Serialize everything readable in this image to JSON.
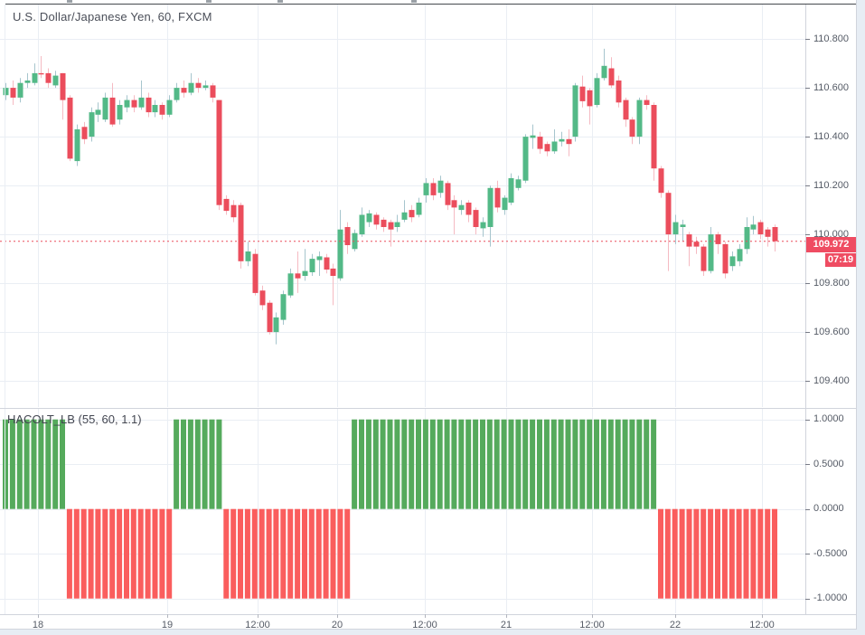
{
  "header": {
    "symbol_title": "U.S. Dollar/Japanese Yen, 60, FXCM"
  },
  "indicator_pane": {
    "label": "HACOLT_LB (55, 60, 1.1)"
  },
  "price_axis": {
    "tick_labels": [
      "110.800",
      "110.600",
      "110.400",
      "110.200",
      "110.000",
      "109.800",
      "109.600",
      "109.400"
    ],
    "tick_values": [
      110.8,
      110.6,
      110.4,
      110.2,
      110.0,
      109.8,
      109.6,
      109.4
    ],
    "last_price_label": "109.972",
    "countdown_label": "07:19"
  },
  "indicator_axis": {
    "tick_labels": [
      "1.0000",
      "0.5000",
      "0.0000",
      "-0.5000",
      "-1.0000"
    ],
    "tick_values": [
      1,
      0.5,
      0,
      -0.5,
      -1
    ]
  },
  "time_axis": {
    "labels": [
      {
        "text": "18",
        "x": 42
      },
      {
        "text": "19",
        "x": 185
      },
      {
        "text": "12:00",
        "x": 285
      },
      {
        "text": "20",
        "x": 373
      },
      {
        "text": "12:00",
        "x": 470
      },
      {
        "text": "21",
        "x": 560
      },
      {
        "text": "12:00",
        "x": 655
      },
      {
        "text": "22",
        "x": 747
      },
      {
        "text": "12:00",
        "x": 843
      }
    ]
  },
  "colors": {
    "up_body": "#53b987",
    "down_body": "#eb4d5c",
    "up_wick": "#a6c5cd",
    "down_wick": "#f5bac2",
    "ind_up": "#55aa5c",
    "ind_down": "#fa5d5d",
    "grid": "#eaeef4",
    "border": "#d1d4dc",
    "dark_top_line": "#46494e",
    "axis_text": "#555b66",
    "badge_bg": "#ef4c62",
    "price_line": "#eb4d5c"
  },
  "chart_data": [
    {
      "type": "candlestick",
      "title": "U.S. Dollar/Japanese Yen, 60, FXCM",
      "symbol": "U.S. Dollar/Japanese Yen",
      "interval": "60",
      "exchange": "FXCM",
      "current_price": 109.972,
      "ylim": [
        109.293,
        110.941
      ],
      "x_start": 6,
      "x_step": 7.88,
      "grid": true,
      "ohlc": [
        [
          110.57,
          110.62,
          110.55,
          110.6
        ],
        [
          110.6,
          110.63,
          110.53,
          110.56
        ],
        [
          110.56,
          110.64,
          110.54,
          110.62
        ],
        [
          110.62,
          110.66,
          110.6,
          110.63
        ],
        [
          110.62,
          110.7,
          110.61,
          110.66
        ],
        [
          110.66,
          110.73,
          110.64,
          110.655
        ],
        [
          110.66,
          110.68,
          110.6,
          110.62
        ],
        [
          110.61,
          110.67,
          110.6,
          110.65
        ],
        [
          110.66,
          110.66,
          110.47,
          110.55
        ],
        [
          110.56,
          110.57,
          110.3,
          110.31
        ],
        [
          110.3,
          110.45,
          110.28,
          110.43
        ],
        [
          110.44,
          110.46,
          110.37,
          110.39
        ],
        [
          110.4,
          110.52,
          110.38,
          110.5
        ],
        [
          110.49,
          110.54,
          110.46,
          110.51
        ],
        [
          110.47,
          110.58,
          110.46,
          110.56
        ],
        [
          110.56,
          110.62,
          110.44,
          110.45
        ],
        [
          110.47,
          110.55,
          110.45,
          110.53
        ],
        [
          110.52,
          110.57,
          110.5,
          110.55
        ],
        [
          110.55,
          110.57,
          110.5,
          110.52
        ],
        [
          110.52,
          110.63,
          110.51,
          110.56
        ],
        [
          110.56,
          110.58,
          110.48,
          110.5
        ],
        [
          110.5,
          110.55,
          110.48,
          110.53
        ],
        [
          110.53,
          110.54,
          110.47,
          110.49
        ],
        [
          110.49,
          110.57,
          110.48,
          110.55
        ],
        [
          110.55,
          110.62,
          110.54,
          110.6
        ],
        [
          110.6,
          110.63,
          110.56,
          110.58
        ],
        [
          110.58,
          110.66,
          110.57,
          110.62
        ],
        [
          110.62,
          110.64,
          110.58,
          110.6
        ],
        [
          110.6,
          110.63,
          110.59,
          110.61
        ],
        [
          110.61,
          110.62,
          110.54,
          110.56
        ],
        [
          110.55,
          110.55,
          110.1,
          110.12
        ],
        [
          110.145,
          110.16,
          110.08,
          110.096
        ],
        [
          110.12,
          110.14,
          110.05,
          110.07
        ],
        [
          110.12,
          110.13,
          109.86,
          109.89
        ],
        [
          109.89,
          109.97,
          109.87,
          109.93
        ],
        [
          109.92,
          109.94,
          109.75,
          109.76
        ],
        [
          109.77,
          109.79,
          109.69,
          109.71
        ],
        [
          109.72,
          109.73,
          109.59,
          109.6
        ],
        [
          109.6,
          109.68,
          109.55,
          109.66
        ],
        [
          109.65,
          109.77,
          109.63,
          109.755
        ],
        [
          109.75,
          109.86,
          109.74,
          109.84
        ],
        [
          109.84,
          109.93,
          109.76,
          109.82
        ],
        [
          109.83,
          109.94,
          109.81,
          109.85
        ],
        [
          109.845,
          109.92,
          109.83,
          109.9
        ],
        [
          109.895,
          109.93,
          109.83,
          109.91
        ],
        [
          109.906,
          109.92,
          109.84,
          109.856
        ],
        [
          109.86,
          109.88,
          109.71,
          109.83
        ],
        [
          109.82,
          110.1,
          109.81,
          110.02
        ],
        [
          110.03,
          110.05,
          109.92,
          109.956
        ],
        [
          109.94,
          110.02,
          109.93,
          110.005
        ],
        [
          110.0,
          110.11,
          109.99,
          110.08
        ],
        [
          110.05,
          110.1,
          110.03,
          110.086
        ],
        [
          110.08,
          110.09,
          110.02,
          110.04
        ],
        [
          110.06,
          110.07,
          110.01,
          110.03
        ],
        [
          110.05,
          110.06,
          109.95,
          110.02
        ],
        [
          110.03,
          110.08,
          110.01,
          110.05
        ],
        [
          110.06,
          110.14,
          110.05,
          110.09
        ],
        [
          110.1,
          110.12,
          110.05,
          110.07
        ],
        [
          110.08,
          110.15,
          110.07,
          110.13
        ],
        [
          110.16,
          110.23,
          110.13,
          110.21
        ],
        [
          110.21,
          110.23,
          110.14,
          110.16
        ],
        [
          110.17,
          110.24,
          110.15,
          110.22
        ],
        [
          110.21,
          110.22,
          110.1,
          110.12
        ],
        [
          110.14,
          110.16,
          110.0,
          110.11
        ],
        [
          110.1,
          110.14,
          110.08,
          110.12
        ],
        [
          110.13,
          110.14,
          110.05,
          110.08
        ],
        [
          110.1,
          110.11,
          110.0,
          110.03
        ],
        [
          110.025,
          110.07,
          109.99,
          110.05
        ],
        [
          110.03,
          110.2,
          109.95,
          110.19
        ],
        [
          110.19,
          110.22,
          110.09,
          110.11
        ],
        [
          110.1,
          110.16,
          110.08,
          110.15
        ],
        [
          110.13,
          110.25,
          110.12,
          110.23
        ],
        [
          110.19,
          110.24,
          110.18,
          110.225
        ],
        [
          110.22,
          110.41,
          110.21,
          110.4
        ],
        [
          110.395,
          110.45,
          110.35,
          110.405
        ],
        [
          110.4,
          110.42,
          110.33,
          110.35
        ],
        [
          110.37,
          110.38,
          110.32,
          110.34
        ],
        [
          110.34,
          110.43,
          110.33,
          110.38
        ],
        [
          110.38,
          110.42,
          110.36,
          110.39
        ],
        [
          110.39,
          110.43,
          110.32,
          110.37
        ],
        [
          110.4,
          110.62,
          110.38,
          110.61
        ],
        [
          110.605,
          110.65,
          110.52,
          110.545
        ],
        [
          110.59,
          110.6,
          110.45,
          110.525
        ],
        [
          110.53,
          110.66,
          110.52,
          110.64
        ],
        [
          110.64,
          110.76,
          110.63,
          110.69
        ],
        [
          110.68,
          110.725,
          110.6,
          110.61
        ],
        [
          110.63,
          110.65,
          110.52,
          110.54
        ],
        [
          110.55,
          110.56,
          110.44,
          110.47
        ],
        [
          110.47,
          110.48,
          110.37,
          110.4
        ],
        [
          110.4,
          110.56,
          110.37,
          110.55
        ],
        [
          110.55,
          110.57,
          110.51,
          110.53
        ],
        [
          110.53,
          110.54,
          110.22,
          110.27
        ],
        [
          110.27,
          110.28,
          110.15,
          110.17
        ],
        [
          110.17,
          110.18,
          109.85,
          110.0
        ],
        [
          110.0,
          110.08,
          109.96,
          110.05
        ],
        [
          110.03,
          110.06,
          109.97,
          110.04
        ],
        [
          110.0,
          110.01,
          109.87,
          109.95
        ],
        [
          109.97,
          109.99,
          109.92,
          109.95
        ],
        [
          109.95,
          109.96,
          109.83,
          109.85
        ],
        [
          109.85,
          110.03,
          109.84,
          110.0
        ],
        [
          110.0,
          110.01,
          109.92,
          109.96
        ],
        [
          109.96,
          109.97,
          109.82,
          109.84
        ],
        [
          109.87,
          109.93,
          109.85,
          109.91
        ],
        [
          109.89,
          109.96,
          109.87,
          109.94
        ],
        [
          109.94,
          110.07,
          109.92,
          110.03
        ],
        [
          110.02,
          110.075,
          110.0,
          110.04
        ],
        [
          110.05,
          110.06,
          109.98,
          110.0
        ],
        [
          110.02,
          110.03,
          109.95,
          109.99
        ],
        [
          110.03,
          110.04,
          109.93,
          109.972
        ]
      ]
    },
    {
      "type": "bar",
      "name": "HACOLT_LB (55, 60, 1.1)",
      "ylim": [
        -1.165,
        1.118
      ],
      "x_start": 6,
      "x_step": 7.88,
      "values": [
        1,
        1,
        1,
        1,
        1,
        1,
        1,
        1,
        1,
        -1,
        -1,
        -1,
        -1,
        -1,
        -1,
        -1,
        -1,
        -1,
        -1,
        -1,
        -1,
        -1,
        -1,
        -1,
        1,
        1,
        1,
        1,
        1,
        1,
        1,
        -1,
        -1,
        -1,
        -1,
        -1,
        -1,
        -1,
        -1,
        -1,
        -1,
        -1,
        -1,
        -1,
        -1,
        -1,
        -1,
        -1,
        -1,
        1,
        1,
        1,
        1,
        1,
        1,
        1,
        1,
        1,
        1,
        1,
        1,
        1,
        1,
        1,
        1,
        1,
        1,
        1,
        1,
        1,
        1,
        1,
        1,
        1,
        1,
        1,
        1,
        1,
        1,
        1,
        1,
        1,
        1,
        1,
        1,
        1,
        1,
        1,
        1,
        1,
        1,
        1,
        -1,
        -1,
        -1,
        -1,
        -1,
        -1,
        -1,
        -1,
        -1,
        -1,
        -1,
        -1,
        -1,
        -1,
        -1,
        -1,
        -1
      ]
    }
  ]
}
